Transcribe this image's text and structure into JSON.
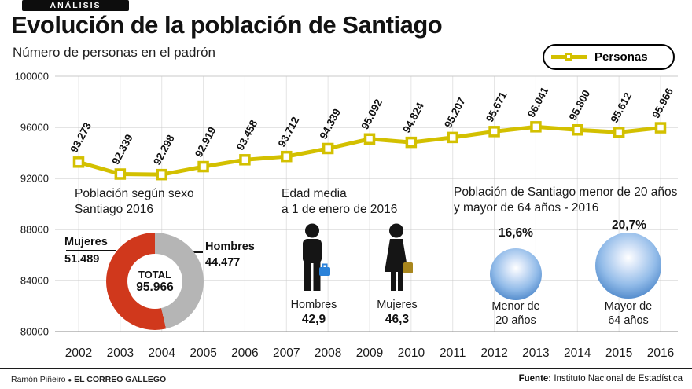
{
  "badge": "ANÁLISIS",
  "title": "Evolución de la población de Santiago",
  "subtitle": "Número de personas en el padrón",
  "legend": {
    "label": "Personas"
  },
  "chart_data": {
    "type": "line",
    "title": "Evolución de la población de Santiago",
    "series_name": "Personas",
    "x": [
      2002,
      2003,
      2004,
      2005,
      2006,
      2007,
      2008,
      2009,
      2010,
      2011,
      2012,
      2013,
      2014,
      2015,
      2016
    ],
    "values": [
      93273,
      92339,
      92298,
      92919,
      93458,
      93712,
      94339,
      95092,
      94824,
      95207,
      95671,
      96041,
      95800,
      95612,
      95966
    ],
    "point_labels": [
      "93.273",
      "92.339",
      "92.298",
      "92.919",
      "93.458",
      "93.712",
      "94.339",
      "95.092",
      "94.824",
      "95.207",
      "95.671",
      "96.041",
      "95.800",
      "95.612",
      "95.966"
    ],
    "ylim": [
      80000,
      100000
    ],
    "yticks": [
      80000,
      84000,
      88000,
      92000,
      96000,
      100000
    ],
    "grid": true,
    "legend_position": "top-right",
    "line_color": "#d3c000",
    "marker": "square"
  },
  "insets": {
    "sexo": {
      "title1": "Población según sexo",
      "title2": "Santiago 2016",
      "mujeres_label": "Mujeres",
      "mujeres_value": "51.489",
      "mujeres_pct": 53.65,
      "mujeres_color": "#d0381c",
      "hombres_label": "Hombres",
      "hombres_value": "44.477",
      "hombres_pct": 46.35,
      "hombres_color": "#b5b5b5",
      "total_label": "TOTAL",
      "total_value": "95.966"
    },
    "edad": {
      "title1": "Edad media",
      "title2": "a 1 de enero de 2016",
      "hombres_label": "Hombres",
      "hombres_value": "42,9",
      "mujeres_label": "Mujeres",
      "mujeres_value": "46,3"
    },
    "edades": {
      "title1": "Población de Santiago menor de 20 años",
      "title2": "y mayor de 64 años - 2016",
      "menor_pct": "16,6%",
      "menor_label1": "Menor de",
      "menor_label2": "20 años",
      "mayor_pct": "20,7%",
      "mayor_label1": "Mayor de",
      "mayor_label2": "64 años"
    }
  },
  "footer": {
    "author": "Ramón Piñeiro",
    "bullet": "●",
    "brand": "EL CORREO GALLEGO",
    "source_label": "Fuente:",
    "source_value": "Instituto Nacional de Estadística"
  }
}
